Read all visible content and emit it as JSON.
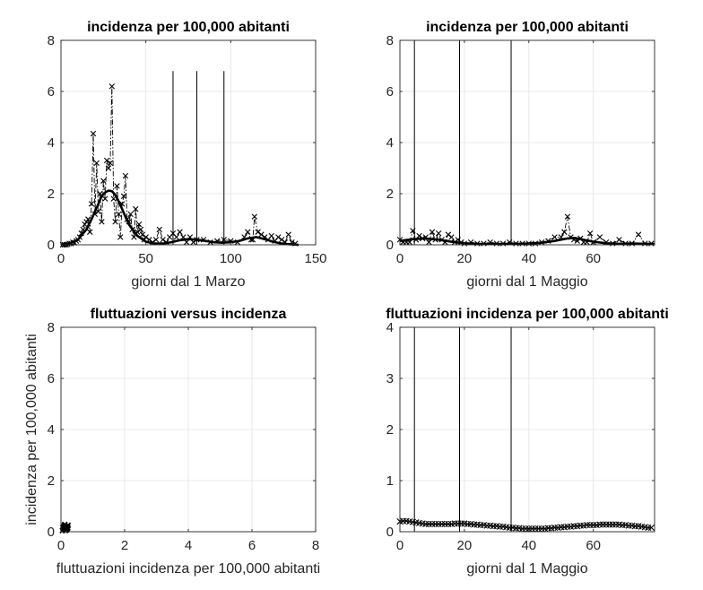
{
  "chart_data": [
    {
      "type": "line",
      "title": "incidenza per 100,000 abitanti",
      "xlabel": "giorni dal 1 Marzo",
      "ylabel": "",
      "xlim": [
        0,
        150
      ],
      "ylim": [
        0,
        8
      ],
      "xticks": [
        0,
        50,
        100,
        150
      ],
      "yticks": [
        0,
        2,
        4,
        6,
        8
      ],
      "xtick_labels": [
        "0",
        "50",
        "100",
        "150"
      ],
      "ytick_labels": [
        "0",
        "2",
        "4",
        "6",
        "8"
      ],
      "grid": true,
      "vlines": [
        {
          "x": 66,
          "y_top": 6.8
        },
        {
          "x": 80,
          "y_top": 6.8
        },
        {
          "x": 96,
          "y_top": 6.8
        }
      ],
      "series": [
        {
          "style": "dashdot-x",
          "x": [
            1,
            2,
            3,
            4,
            5,
            6,
            7,
            8,
            9,
            10,
            11,
            12,
            13,
            14,
            15,
            16,
            17,
            18,
            19,
            20,
            21,
            22,
            23,
            24,
            25,
            26,
            27,
            28,
            29,
            30,
            31,
            32,
            33,
            34,
            35,
            36,
            37,
            38,
            39,
            40,
            41,
            42,
            43,
            44,
            45,
            46,
            47,
            48,
            49,
            50,
            52,
            54,
            56,
            58,
            60,
            62,
            64,
            66,
            68,
            70,
            72,
            74,
            76,
            78,
            80,
            84,
            88,
            92,
            96,
            100,
            104,
            108,
            110,
            112,
            113,
            114,
            116,
            118,
            120,
            122,
            124,
            126,
            128,
            130,
            132,
            134,
            136,
            138
          ],
          "y": [
            0,
            0,
            0,
            0.02,
            0.05,
            0.05,
            0.1,
            0.08,
            0.15,
            0.2,
            0.3,
            0.45,
            0.6,
            0.8,
            0.9,
            1.0,
            0.5,
            1.6,
            4.35,
            1.2,
            3.2,
            1.3,
            2.0,
            0.9,
            2.5,
            1.8,
            3.3,
            3.0,
            3.2,
            6.2,
            1.8,
            0.9,
            2.3,
            1.2,
            0.3,
            1.6,
            1.9,
            2.7,
            1.0,
            0.9,
            1.2,
            0.6,
            0.3,
            1.4,
            0.5,
            0.8,
            0.6,
            0.4,
            0.2,
            0.3,
            0.2,
            0.1,
            0.2,
            0.6,
            0.2,
            0.1,
            0.3,
            0.45,
            0.3,
            0.5,
            0.3,
            0.1,
            0.3,
            0.1,
            0.2,
            0.2,
            0.1,
            0.15,
            0.2,
            0.15,
            0.1,
            0.3,
            0.5,
            0.2,
            0.2,
            1.1,
            0.5,
            0.4,
            0.3,
            0.2,
            0.35,
            0.15,
            0.3,
            0.2,
            0.1,
            0.4,
            0.1,
            0.05
          ]
        },
        {
          "style": "thick-solid",
          "x": [
            0,
            5,
            10,
            15,
            18,
            20,
            22,
            24,
            26,
            28,
            30,
            32,
            34,
            36,
            38,
            40,
            45,
            50,
            55,
            60,
            65,
            70,
            75,
            80,
            85,
            90,
            95,
            100,
            105,
            110,
            115,
            120,
            125,
            130,
            135,
            140
          ],
          "y": [
            0,
            0.05,
            0.2,
            0.6,
            1.0,
            1.3,
            1.6,
            1.9,
            2.05,
            2.12,
            2.1,
            1.95,
            1.7,
            1.4,
            1.1,
            0.8,
            0.35,
            0.12,
            0.05,
            0.05,
            0.1,
            0.18,
            0.22,
            0.2,
            0.15,
            0.1,
            0.08,
            0.1,
            0.15,
            0.25,
            0.3,
            0.22,
            0.12,
            0.05,
            0.02,
            0
          ]
        }
      ]
    },
    {
      "type": "line",
      "title": "incidenza per 100,000 abitanti",
      "xlabel": "giorni dal 1 Maggio",
      "ylabel": "",
      "xlim": [
        0,
        79
      ],
      "ylim": [
        0,
        8
      ],
      "xticks": [
        0,
        20,
        40,
        60
      ],
      "yticks": [
        0,
        2,
        4,
        6,
        8
      ],
      "xtick_labels": [
        "0",
        "20",
        "40",
        "60"
      ],
      "ytick_labels": [
        "0",
        "2",
        "4",
        "6",
        "8"
      ],
      "grid": true,
      "vlines": [
        {
          "x": 4.5,
          "y_top": 8
        },
        {
          "x": 18.5,
          "y_top": 8
        },
        {
          "x": 34.5,
          "y_top": 8
        }
      ],
      "series": [
        {
          "style": "dashdot-x",
          "x": [
            0,
            1,
            2,
            3,
            4,
            5,
            6,
            7,
            8,
            9,
            10,
            11,
            12,
            13,
            14,
            15,
            16,
            17,
            18,
            19,
            20,
            22,
            24,
            26,
            28,
            30,
            32,
            34,
            36,
            38,
            40,
            42,
            44,
            46,
            48,
            50,
            51,
            52,
            53,
            54,
            55,
            56,
            57,
            58,
            59,
            60,
            62,
            64,
            66,
            68,
            70,
            72,
            74,
            76,
            78
          ],
          "y": [
            0.2,
            0.1,
            0.1,
            0.1,
            0.55,
            0.2,
            0.35,
            0.25,
            0.3,
            0.1,
            0.5,
            0.2,
            0.45,
            0.2,
            0.1,
            0.4,
            0.3,
            0.1,
            0.2,
            0.1,
            0.05,
            0.1,
            0.05,
            0.05,
            0.1,
            0.05,
            0.05,
            0.1,
            0.05,
            0.05,
            0.05,
            0.05,
            0.1,
            0.15,
            0.3,
            0.3,
            0.5,
            1.1,
            0.3,
            0.2,
            0.15,
            0.25,
            0.1,
            0.1,
            0.45,
            0.1,
            0.3,
            0.1,
            0.05,
            0.2,
            0.05,
            0.05,
            0.4,
            0.05,
            0.05
          ]
        },
        {
          "style": "thick-solid",
          "x": [
            0,
            4,
            8,
            12,
            16,
            20,
            24,
            28,
            32,
            36,
            40,
            44,
            48,
            52,
            54,
            56,
            60,
            64,
            68,
            72,
            76,
            79
          ],
          "y": [
            0.15,
            0.22,
            0.25,
            0.2,
            0.12,
            0.06,
            0.04,
            0.03,
            0.03,
            0.03,
            0.05,
            0.08,
            0.15,
            0.25,
            0.27,
            0.22,
            0.12,
            0.06,
            0.04,
            0.05,
            0.04,
            0.03
          ]
        }
      ]
    },
    {
      "type": "scatter",
      "title": "fluttuazioni versus incidenza",
      "xlabel": "fluttuazioni incidenza per 100,000 abitanti",
      "ylabel": "incidenza per 100,000 abitanti",
      "xlim": [
        0,
        8
      ],
      "ylim": [
        0,
        8
      ],
      "xticks": [
        0,
        2,
        4,
        6,
        8
      ],
      "yticks": [
        0,
        2,
        4,
        6,
        8
      ],
      "xtick_labels": [
        "0",
        "2",
        "4",
        "6",
        "8"
      ],
      "ytick_labels": [
        "0",
        "2",
        "4",
        "6",
        "8"
      ],
      "grid": true,
      "vlines": [],
      "series": [
        {
          "style": "x-markers",
          "x": [
            0.05,
            0.08,
            0.1,
            0.12,
            0.15,
            0.18,
            0.2,
            0.22,
            0.1,
            0.14,
            0.06,
            0.19,
            0.12,
            0.09,
            0.16,
            0.21
          ],
          "y": [
            0.05,
            0.1,
            0.12,
            0.15,
            0.2,
            0.08,
            0.18,
            0.25,
            0.22,
            0.05,
            0.15,
            0.12,
            0.28,
            0.18,
            0.1,
            0.15
          ]
        }
      ]
    },
    {
      "type": "line",
      "title": "fluttuazioni incidenza per 100,000 abitanti",
      "xlabel": "giorni dal 1 Maggio",
      "ylabel": "",
      "xlim": [
        0,
        79
      ],
      "ylim": [
        0,
        4
      ],
      "xticks": [
        0,
        20,
        40,
        60
      ],
      "yticks": [
        0,
        1,
        2,
        3,
        4
      ],
      "xtick_labels": [
        "0",
        "20",
        "40",
        "60"
      ],
      "ytick_labels": [
        "0",
        "1",
        "2",
        "3",
        "4"
      ],
      "grid": true,
      "vlines": [
        {
          "x": 4.5,
          "y_top": 4
        },
        {
          "x": 18.5,
          "y_top": 4
        },
        {
          "x": 34.5,
          "y_top": 4
        }
      ],
      "series": [
        {
          "style": "x-line",
          "x": [
            0,
            1,
            2,
            3,
            4,
            5,
            6,
            7,
            8,
            9,
            10,
            11,
            12,
            13,
            14,
            15,
            16,
            17,
            18,
            19,
            20,
            21,
            22,
            23,
            24,
            25,
            26,
            27,
            28,
            29,
            30,
            31,
            32,
            33,
            34,
            35,
            36,
            37,
            38,
            39,
            40,
            41,
            42,
            43,
            44,
            45,
            46,
            47,
            48,
            49,
            50,
            51,
            52,
            53,
            54,
            55,
            56,
            57,
            58,
            59,
            60,
            61,
            62,
            63,
            64,
            65,
            66,
            67,
            68,
            69,
            70,
            71,
            72,
            73,
            74,
            75,
            76,
            77,
            78
          ],
          "y": [
            0.2,
            0.21,
            0.21,
            0.2,
            0.19,
            0.18,
            0.17,
            0.16,
            0.15,
            0.15,
            0.15,
            0.15,
            0.15,
            0.15,
            0.15,
            0.15,
            0.15,
            0.16,
            0.16,
            0.16,
            0.16,
            0.15,
            0.15,
            0.14,
            0.14,
            0.13,
            0.13,
            0.12,
            0.12,
            0.11,
            0.11,
            0.1,
            0.1,
            0.09,
            0.08,
            0.08,
            0.07,
            0.07,
            0.06,
            0.06,
            0.06,
            0.06,
            0.06,
            0.06,
            0.06,
            0.06,
            0.07,
            0.07,
            0.08,
            0.08,
            0.09,
            0.09,
            0.1,
            0.1,
            0.11,
            0.11,
            0.12,
            0.12,
            0.13,
            0.13,
            0.13,
            0.13,
            0.14,
            0.14,
            0.14,
            0.14,
            0.14,
            0.14,
            0.14,
            0.13,
            0.13,
            0.12,
            0.12,
            0.11,
            0.11,
            0.1,
            0.09,
            0.08,
            0.08
          ]
        }
      ]
    }
  ]
}
